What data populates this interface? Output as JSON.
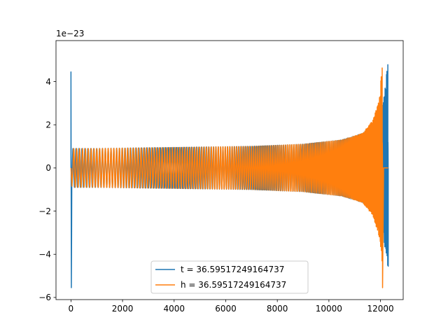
{
  "chart_data": {
    "type": "line",
    "title": "",
    "xlabel": "",
    "ylabel": "",
    "offset_text": "1e−23",
    "xlim": [
      -580,
      12880
    ],
    "ylim": [
      -6.1,
      5.9
    ],
    "xticks": [
      0,
      2000,
      4000,
      6000,
      8000,
      10000,
      12000
    ],
    "xtick_labels": [
      "0",
      "2000",
      "4000",
      "6000",
      "8000",
      "10000",
      "12000"
    ],
    "yticks": [
      -6,
      -4,
      -2,
      0,
      2,
      4
    ],
    "ytick_labels": [
      "−6",
      "−4",
      "−2",
      "0",
      "2",
      "4"
    ],
    "grid": false,
    "legend_position": "lower-center",
    "series": [
      {
        "name": "t = 36.59517249164737",
        "color": "#1f77b4",
        "start_x": 0,
        "end_x": 12300,
        "cycles": 170,
        "start_spike": {
          "x": 0,
          "max": 4.45,
          "min": -5.55
        },
        "envelope": {
          "x": [
            50,
            1000,
            4000,
            7000,
            9000,
            10500,
            11300,
            11800,
            12100,
            12250,
            12300
          ],
          "amp": [
            0.9,
            0.9,
            0.95,
            1.0,
            1.1,
            1.3,
            1.6,
            2.0,
            3.0,
            4.5,
            5.35
          ],
          "min_at_end": -4.55
        }
      },
      {
        "name": "h = 36.59517249164737",
        "color": "#ff7f0e",
        "start_x": 0,
        "end_x": 12300,
        "cycles": 170,
        "merger_x": 12080,
        "envelope": {
          "x": [
            80,
            1000,
            4000,
            7000,
            9000,
            10500,
            11300,
            11700,
            11950,
            12050,
            12080
          ],
          "amp": [
            0.9,
            0.9,
            0.95,
            1.0,
            1.1,
            1.3,
            1.6,
            2.2,
            3.2,
            4.5,
            5.35
          ],
          "min_at_end": -5.55
        }
      }
    ]
  }
}
